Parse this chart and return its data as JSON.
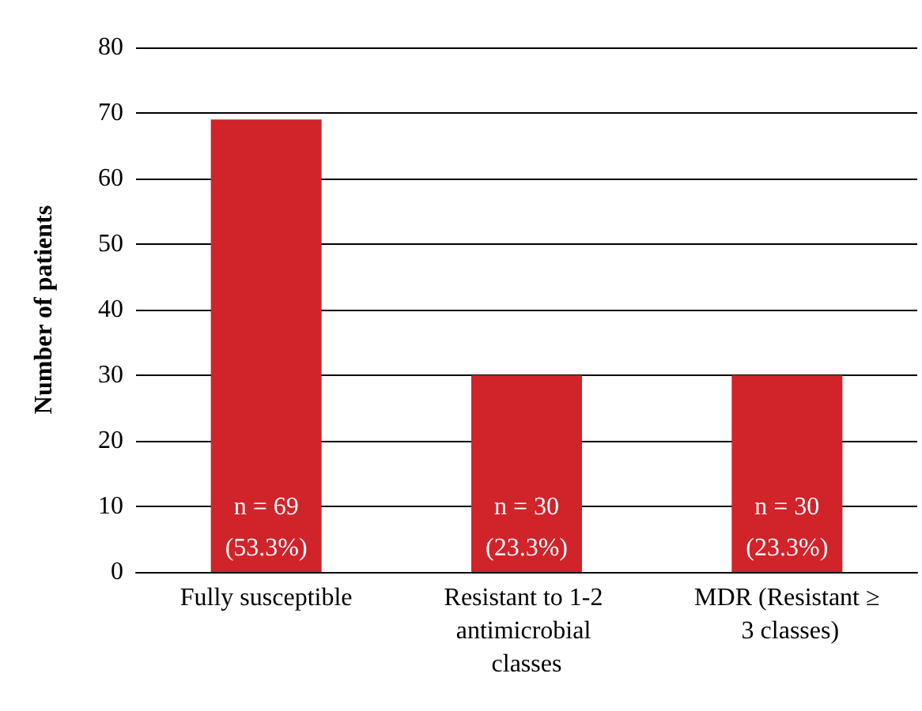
{
  "chart_data": {
    "type": "bar",
    "ylabel": "Number of patients",
    "categories": [
      "Fully susceptible",
      "Resistant to 1-2 antimicrobial classes",
      "MDR (Resistant ≥ 3 classes)"
    ],
    "values": [
      69,
      30,
      30
    ],
    "color": "#d0232a",
    "value_labels": [
      "n = 69\n(53.3%)",
      "n = 30\n(23.3%)",
      "n = 30\n(23.3%)"
    ],
    "ylim": [
      0,
      80
    ],
    "yticks": [
      0,
      10,
      20,
      30,
      40,
      50,
      60,
      70,
      80
    ],
    "grid": "y"
  }
}
